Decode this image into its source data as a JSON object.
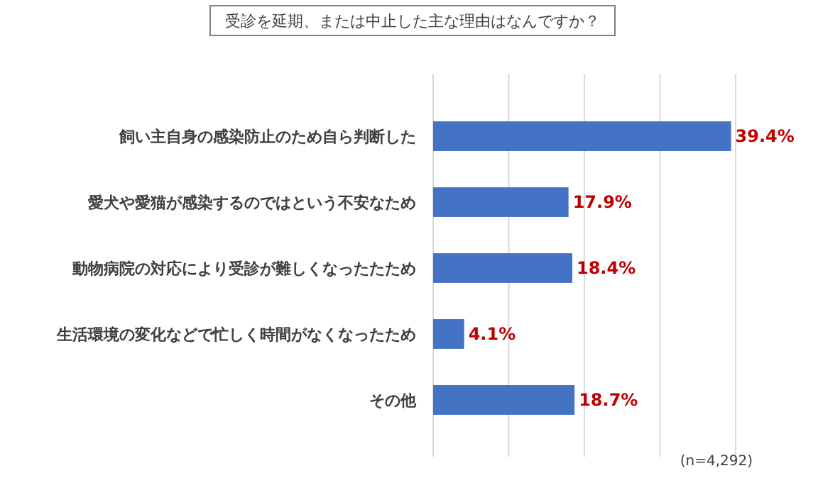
{
  "chart_data": {
    "type": "bar",
    "orientation": "horizontal",
    "title": "受診を延期、または中止した主な理由はなんですか？",
    "categories": [
      "飼い主自身の感染防止のため自ら判断した",
      "愛犬や愛猫が感染するのではという不安なため",
      "動物病院の対応により受診が難しくなったたため",
      "生活環境の変化などで忙しく時間がなくなったため",
      "その他"
    ],
    "values": [
      39.4,
      17.9,
      18.4,
      4.1,
      18.7
    ],
    "color": "#4472c4",
    "value_labels": [
      "39.4%",
      "17.9%",
      "18.4%",
      "4.1%",
      "18.7%"
    ],
    "xlim": [
      0,
      40
    ],
    "xticks": [
      {
        "value": 0,
        "label": null
      },
      {
        "value": 10,
        "label": null
      },
      {
        "value": 20,
        "label": null
      },
      {
        "value": 30,
        "label": null
      },
      {
        "value": 40,
        "label": null
      }
    ],
    "grid": "x",
    "tick_labels": "y",
    "annotations": [
      "(n=4,292)"
    ]
  }
}
